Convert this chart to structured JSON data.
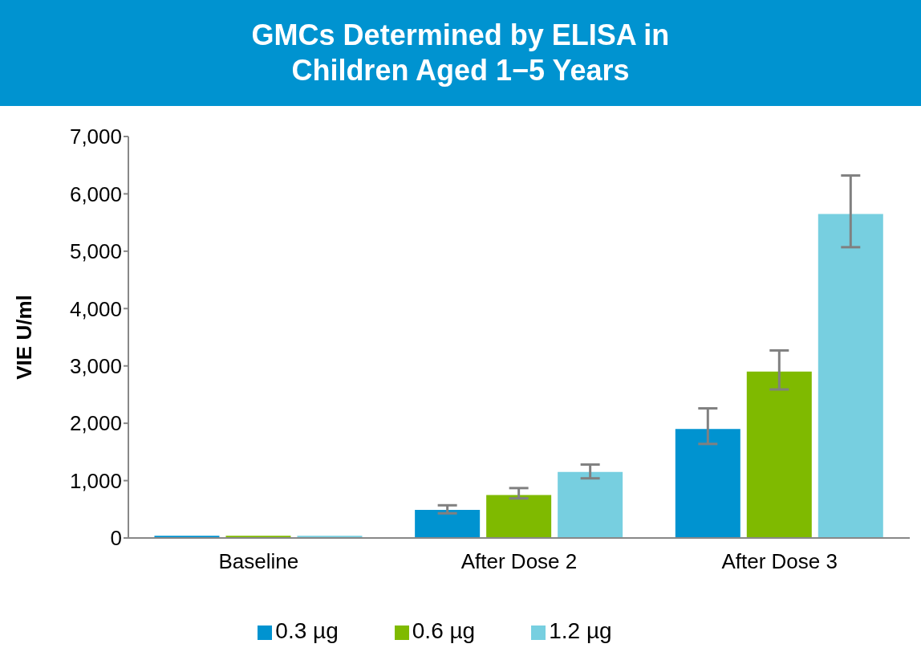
{
  "chart_data": {
    "type": "bar",
    "title": "GMCs Determined by ELISA in\nChildren Aged 1−5 Years",
    "ylabel": "VIE U/ml",
    "categories": [
      "Baseline",
      "After Dose 2",
      "After Dose 3"
    ],
    "series": [
      {
        "name": "0.3 µg",
        "color": "#0093d0",
        "values": [
          40,
          490,
          1900
        ],
        "errors": [
          null,
          [
            430,
            570
          ],
          [
            1640,
            2260
          ]
        ]
      },
      {
        "name": "0.6 µg",
        "color": "#7fba00",
        "values": [
          40,
          750,
          2900
        ],
        "errors": [
          null,
          [
            690,
            870
          ],
          [
            2590,
            3270
          ]
        ]
      },
      {
        "name": "1.2 µg",
        "color": "#77cfe0",
        "values": [
          40,
          1150,
          5650
        ],
        "errors": [
          null,
          [
            1040,
            1280
          ],
          [
            5070,
            6320
          ]
        ]
      }
    ],
    "ylim": [
      0,
      7000
    ],
    "yticks": [
      0,
      {
        "value": 1000,
        "label": "1,000"
      },
      {
        "value": 2000,
        "label": "2,000"
      },
      {
        "value": 3000,
        "label": "3,000"
      },
      {
        "value": 4000,
        "label": "4,000"
      },
      {
        "value": 5000,
        "label": "5,000"
      },
      {
        "value": 6000,
        "label": "6,000"
      },
      {
        "value": 7000,
        "label": "7,000"
      }
    ],
    "grid": false,
    "legend": "bottom"
  }
}
